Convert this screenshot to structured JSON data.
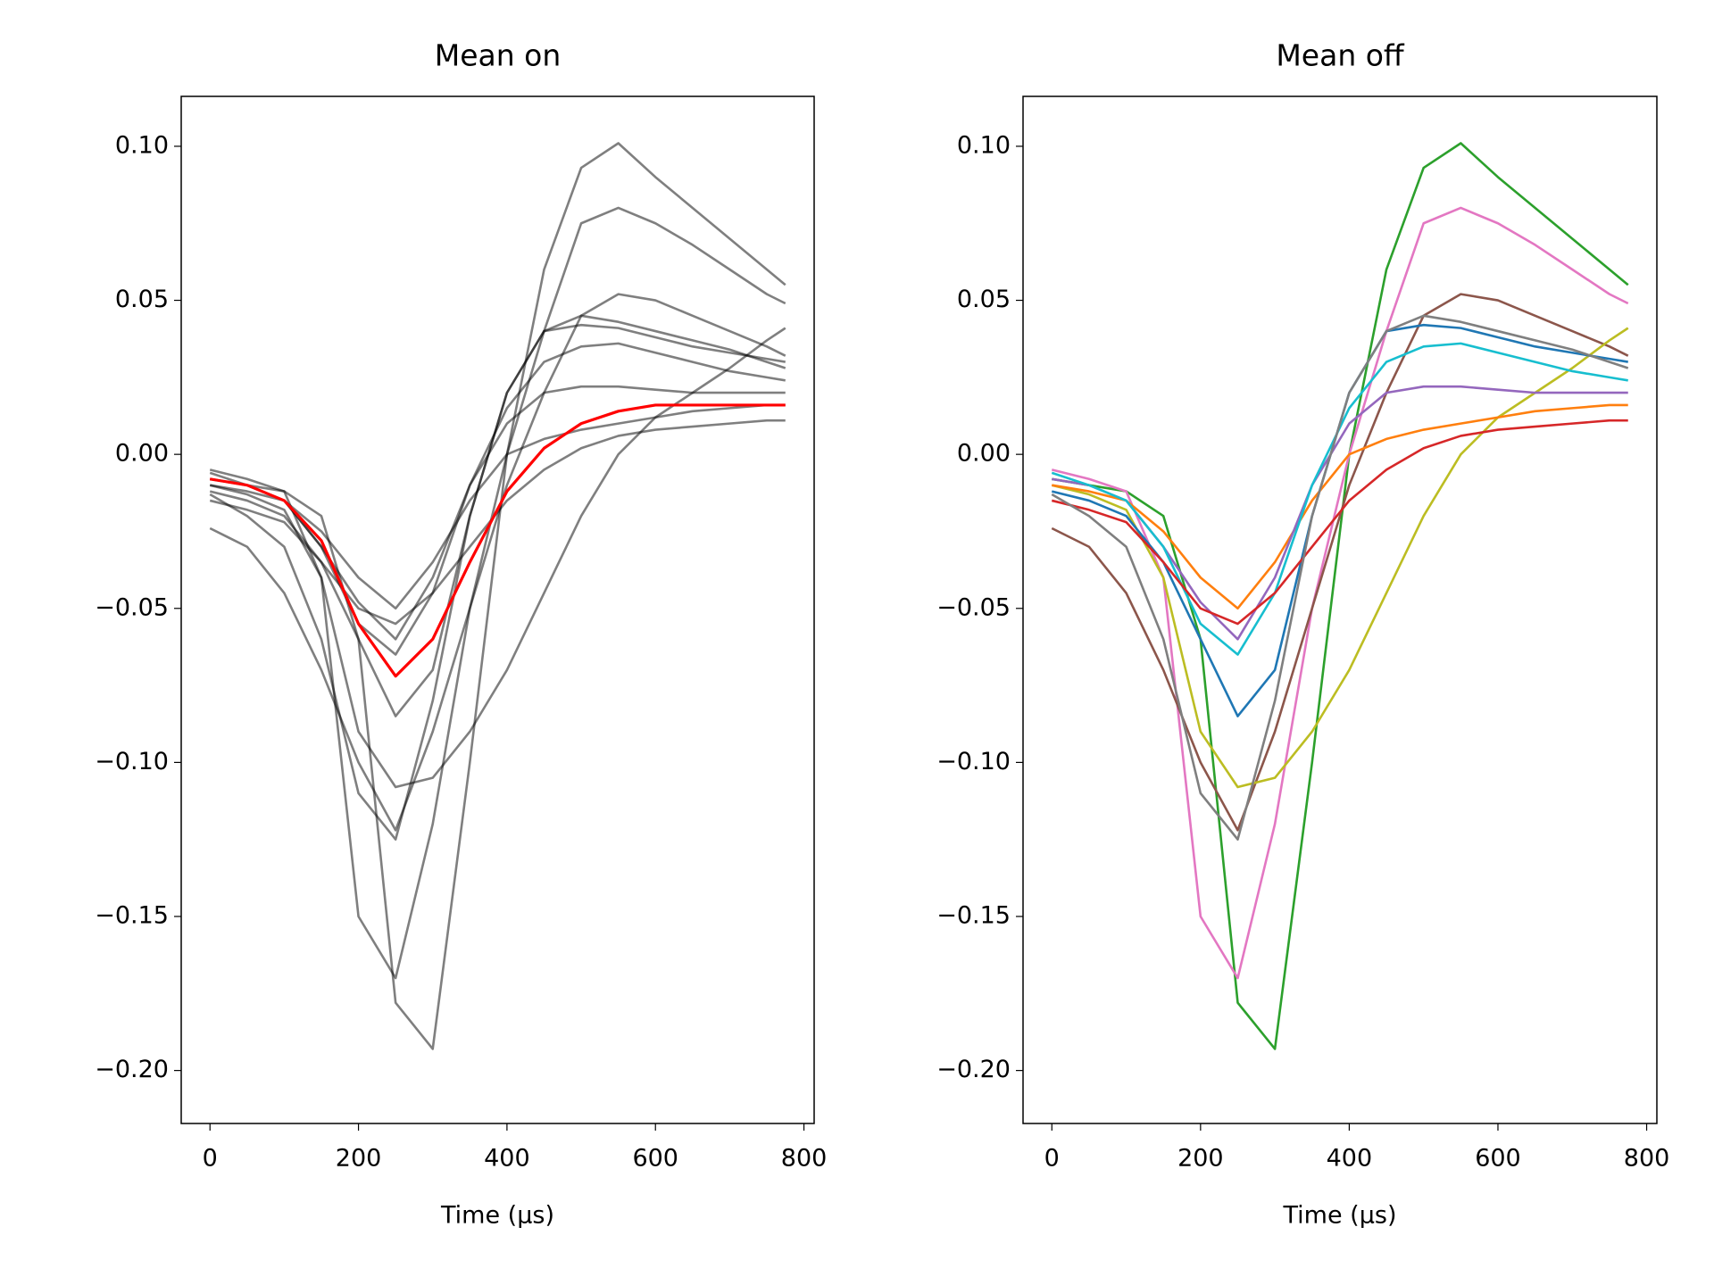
{
  "chart_data": [
    {
      "type": "line",
      "title": "Mean on",
      "xlabel": "Time (μs)",
      "line_opacity": 0.5,
      "xlim": [
        -38.75,
        813.75
      ],
      "xticks": [
        0,
        200,
        400,
        600,
        800
      ],
      "ylim": [
        -0.2172,
        0.1162
      ],
      "yticks": [
        {
          "value": -0.2,
          "label": "−0.20"
        },
        {
          "value": -0.15,
          "label": "−0.15"
        },
        {
          "value": -0.1,
          "label": "−0.10"
        },
        {
          "value": -0.05,
          "label": "−0.05"
        },
        {
          "value": 0,
          "label": "0.00"
        },
        {
          "value": 0.05,
          "label": "0.05"
        },
        {
          "value": 0.1,
          "label": "0.10"
        }
      ],
      "x": [
        0,
        50,
        100,
        150,
        200,
        250,
        300,
        350,
        400,
        450,
        500,
        550,
        600,
        650,
        700,
        750,
        775
      ],
      "series": [
        {
          "color": "#000000",
          "values": [
            -0.008,
            -0.01,
            -0.012,
            -0.02,
            -0.06,
            -0.178,
            -0.193,
            -0.1,
            0.0,
            0.06,
            0.093,
            0.101,
            0.09,
            0.08,
            0.07,
            0.06,
            0.055
          ]
        },
        {
          "color": "#000000",
          "values": [
            -0.005,
            -0.008,
            -0.012,
            -0.04,
            -0.15,
            -0.17,
            -0.12,
            -0.05,
            0.0,
            0.04,
            0.075,
            0.08,
            0.075,
            0.068,
            0.06,
            0.052,
            0.049
          ]
        },
        {
          "color": "#000000",
          "values": [
            -0.024,
            -0.03,
            -0.045,
            -0.07,
            -0.1,
            -0.122,
            -0.09,
            -0.05,
            -0.01,
            0.02,
            0.045,
            0.052,
            0.05,
            0.045,
            0.04,
            0.035,
            0.032
          ]
        },
        {
          "color": "#000000",
          "values": [
            -0.01,
            -0.013,
            -0.018,
            -0.04,
            -0.09,
            -0.108,
            -0.105,
            -0.09,
            -0.07,
            -0.045,
            -0.02,
            0.0,
            0.012,
            0.02,
            0.028,
            0.037,
            0.041
          ]
        },
        {
          "color": "#000000",
          "values": [
            -0.012,
            -0.015,
            -0.02,
            -0.035,
            -0.06,
            -0.085,
            -0.07,
            -0.02,
            0.02,
            0.04,
            0.042,
            0.041,
            0.038,
            0.035,
            0.033,
            0.031,
            0.03
          ]
        },
        {
          "color": "#000000",
          "values": [
            -0.01,
            -0.012,
            -0.015,
            -0.025,
            -0.04,
            -0.05,
            -0.035,
            -0.015,
            0.0,
            0.005,
            0.008,
            0.01,
            0.012,
            0.014,
            0.015,
            0.016,
            0.016
          ]
        },
        {
          "color": "#000000",
          "values": [
            -0.008,
            -0.01,
            -0.015,
            -0.03,
            -0.048,
            -0.06,
            -0.04,
            -0.01,
            0.01,
            0.02,
            0.022,
            0.022,
            0.021,
            0.02,
            0.02,
            0.02,
            0.02
          ]
        },
        {
          "color": "#000000",
          "values": [
            -0.006,
            -0.01,
            -0.015,
            -0.03,
            -0.055,
            -0.065,
            -0.045,
            -0.01,
            0.015,
            0.03,
            0.035,
            0.036,
            0.033,
            0.03,
            0.027,
            0.025,
            0.024
          ]
        },
        {
          "color": "#000000",
          "values": [
            -0.015,
            -0.018,
            -0.022,
            -0.035,
            -0.05,
            -0.055,
            -0.045,
            -0.03,
            -0.015,
            -0.005,
            0.002,
            0.006,
            0.008,
            0.009,
            0.01,
            0.011,
            0.011
          ]
        },
        {
          "color": "#000000",
          "values": [
            -0.013,
            -0.02,
            -0.03,
            -0.06,
            -0.11,
            -0.125,
            -0.08,
            -0.02,
            0.02,
            0.04,
            0.045,
            0.043,
            0.04,
            0.037,
            0.034,
            0.03,
            0.028
          ]
        },
        {
          "color": "#ff0000",
          "emphasis": true,
          "values": [
            -0.008,
            -0.01,
            -0.015,
            -0.028,
            -0.055,
            -0.072,
            -0.06,
            -0.035,
            -0.012,
            0.002,
            0.01,
            0.014,
            0.016,
            0.016,
            0.016,
            0.016,
            0.016
          ]
        }
      ]
    },
    {
      "type": "line",
      "title": "Mean off",
      "xlabel": "Time (μs)",
      "xlim": [
        -38.75,
        813.75
      ],
      "xticks": [
        0,
        200,
        400,
        600,
        800
      ],
      "ylim": [
        -0.2172,
        0.1162
      ],
      "yticks": [
        {
          "value": -0.2,
          "label": "−0.20"
        },
        {
          "value": -0.15,
          "label": "−0.15"
        },
        {
          "value": -0.1,
          "label": "−0.10"
        },
        {
          "value": -0.05,
          "label": "−0.05"
        },
        {
          "value": 0,
          "label": "0.00"
        },
        {
          "value": 0.05,
          "label": "0.05"
        },
        {
          "value": 0.1,
          "label": "0.10"
        }
      ],
      "x": [
        0,
        50,
        100,
        150,
        200,
        250,
        300,
        350,
        400,
        450,
        500,
        550,
        600,
        650,
        700,
        750,
        775
      ],
      "series": [
        {
          "color": "#2ca02c",
          "values": [
            -0.008,
            -0.01,
            -0.012,
            -0.02,
            -0.06,
            -0.178,
            -0.193,
            -0.1,
            0.0,
            0.06,
            0.093,
            0.101,
            0.09,
            0.08,
            0.07,
            0.06,
            0.055
          ]
        },
        {
          "color": "#e377c2",
          "values": [
            -0.005,
            -0.008,
            -0.012,
            -0.04,
            -0.15,
            -0.17,
            -0.12,
            -0.05,
            0.0,
            0.04,
            0.075,
            0.08,
            0.075,
            0.068,
            0.06,
            0.052,
            0.049
          ]
        },
        {
          "color": "#8c564b",
          "values": [
            -0.024,
            -0.03,
            -0.045,
            -0.07,
            -0.1,
            -0.122,
            -0.09,
            -0.05,
            -0.01,
            0.02,
            0.045,
            0.052,
            0.05,
            0.045,
            0.04,
            0.035,
            0.032
          ]
        },
        {
          "color": "#bcbd22",
          "values": [
            -0.01,
            -0.013,
            -0.018,
            -0.04,
            -0.09,
            -0.108,
            -0.105,
            -0.09,
            -0.07,
            -0.045,
            -0.02,
            0.0,
            0.012,
            0.02,
            0.028,
            0.037,
            0.041
          ]
        },
        {
          "color": "#1f77b4",
          "values": [
            -0.012,
            -0.015,
            -0.02,
            -0.035,
            -0.06,
            -0.085,
            -0.07,
            -0.02,
            0.02,
            0.04,
            0.042,
            0.041,
            0.038,
            0.035,
            0.033,
            0.031,
            0.03
          ]
        },
        {
          "color": "#ff7f0e",
          "values": [
            -0.01,
            -0.012,
            -0.015,
            -0.025,
            -0.04,
            -0.05,
            -0.035,
            -0.015,
            0.0,
            0.005,
            0.008,
            0.01,
            0.012,
            0.014,
            0.015,
            0.016,
            0.016
          ]
        },
        {
          "color": "#9467bd",
          "values": [
            -0.008,
            -0.01,
            -0.015,
            -0.03,
            -0.048,
            -0.06,
            -0.04,
            -0.01,
            0.01,
            0.02,
            0.022,
            0.022,
            0.021,
            0.02,
            0.02,
            0.02,
            0.02
          ]
        },
        {
          "color": "#17becf",
          "values": [
            -0.006,
            -0.01,
            -0.015,
            -0.03,
            -0.055,
            -0.065,
            -0.045,
            -0.01,
            0.015,
            0.03,
            0.035,
            0.036,
            0.033,
            0.03,
            0.027,
            0.025,
            0.024
          ]
        },
        {
          "color": "#d62728",
          "values": [
            -0.015,
            -0.018,
            -0.022,
            -0.035,
            -0.05,
            -0.055,
            -0.045,
            -0.03,
            -0.015,
            -0.005,
            0.002,
            0.006,
            0.008,
            0.009,
            0.01,
            0.011,
            0.011
          ]
        },
        {
          "color": "#7f7f7f",
          "values": [
            -0.013,
            -0.02,
            -0.03,
            -0.06,
            -0.11,
            -0.125,
            -0.08,
            -0.02,
            0.02,
            0.04,
            0.045,
            0.043,
            0.04,
            0.037,
            0.034,
            0.03,
            0.028
          ]
        }
      ]
    }
  ]
}
